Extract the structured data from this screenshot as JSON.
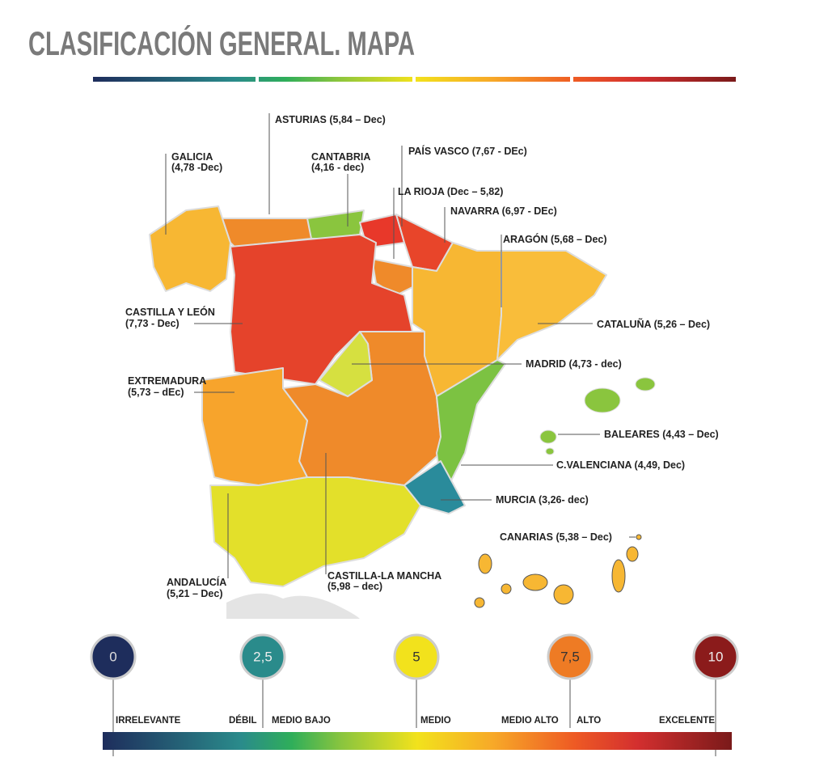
{
  "header": {
    "title": "CLASIFICACIÓN GENERAL. MAPA"
  },
  "regions": [
    {
      "lines": [
        "ASTURIAS (5,84 – Dec)"
      ]
    },
    {
      "lines": [
        "GALICIA",
        "(4,78 -Dec)"
      ]
    },
    {
      "lines": [
        "CANTABRIA",
        "(4,16 - dec)"
      ]
    },
    {
      "lines": [
        "PAÍS VASCO (7,67 - DEc)"
      ]
    },
    {
      "lines": [
        "LA RIOJA (Dec – 5,82)"
      ]
    },
    {
      "lines": [
        "NAVARRA (6,97 - DEc)"
      ]
    },
    {
      "lines": [
        "ARAGÓN (5,68 – Dec)"
      ]
    },
    {
      "lines": [
        "CASTILLA Y LEÓN",
        "(7,73 - Dec)"
      ]
    },
    {
      "lines": [
        "CATALUÑA (5,26 – Dec)"
      ]
    },
    {
      "lines": [
        "MADRID (4,73 - dec)"
      ]
    },
    {
      "lines": [
        "EXTREMADURA",
        "(5,73 – dEc)"
      ]
    },
    {
      "lines": [
        "BALEARES (4,43 – Dec)"
      ]
    },
    {
      "lines": [
        "C.VALENCIANA (4,49, Dec)"
      ]
    },
    {
      "lines": [
        "MURCIA (3,26- dec)"
      ]
    },
    {
      "lines": [
        "CANARIAS (5,38 – Dec)"
      ]
    },
    {
      "lines": [
        "ANDALUCÍA",
        "(5,21 – Dec)"
      ]
    },
    {
      "lines": [
        "CASTILLA-LA MANCHA",
        "(5,98 – dec)"
      ]
    }
  ],
  "legend": {
    "scale": [
      "0",
      "2,5",
      "5",
      "7,5",
      "10"
    ],
    "levels": [
      "IRRELEVANTE",
      "DÉBIL",
      "MEDIO BAJO",
      "MEDIO",
      "MEDIO ALTO",
      "ALTO",
      "EXCELENTE"
    ]
  }
}
